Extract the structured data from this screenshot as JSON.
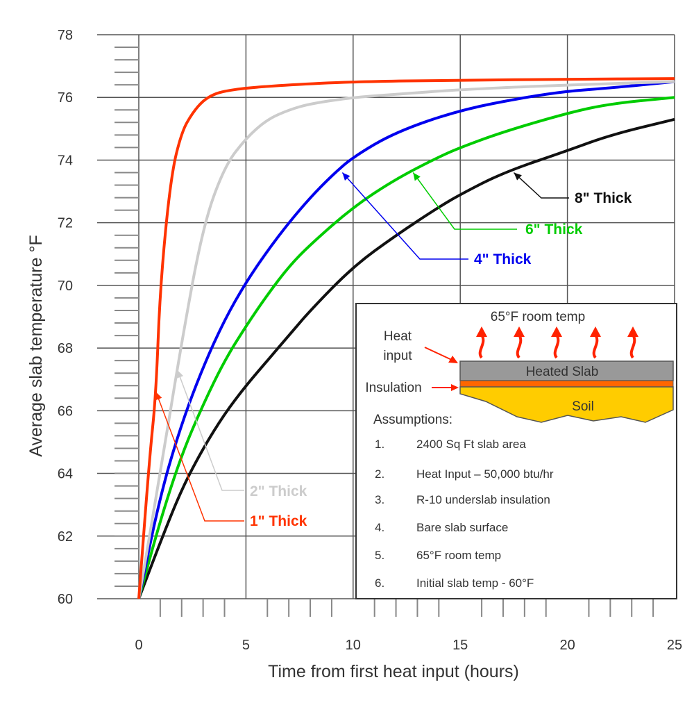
{
  "chart_data": {
    "type": "line",
    "title": "",
    "xlabel": "Time from first heat input (hours)",
    "ylabel": "Average slab temperature °F",
    "xlim": [
      0,
      25
    ],
    "ylim": [
      60,
      78
    ],
    "x_ticks": [
      "0",
      "5",
      "10",
      "15",
      "20",
      "25"
    ],
    "y_ticks": [
      "60",
      "62",
      "64",
      "66",
      "68",
      "70",
      "72",
      "74",
      "76",
      "78"
    ],
    "grid": true,
    "series": [
      {
        "name": "1\" Thick",
        "color": "#ff3300",
        "x": [
          0,
          0.5,
          0.8,
          1.0,
          1.5,
          2.0,
          2.5,
          3.0,
          3.5,
          4.0,
          5.0,
          7.0,
          10.0,
          15.0,
          20.0,
          25.0
        ],
        "y": [
          60.0,
          64.5,
          66.5,
          70.0,
          73.5,
          74.9,
          75.5,
          75.9,
          76.1,
          76.2,
          76.3,
          76.4,
          76.5,
          76.55,
          76.58,
          76.6
        ]
      },
      {
        "name": "2\" Thick",
        "color": "#cccccc",
        "x": [
          0,
          1.0,
          2.0,
          3.0,
          4.0,
          5.0,
          6.0,
          7.0,
          8.0,
          10.0,
          12.0,
          15.0,
          20.0,
          25.0
        ],
        "y": [
          60.0,
          64.0,
          68.2,
          71.9,
          73.8,
          74.7,
          75.3,
          75.6,
          75.8,
          76.0,
          76.1,
          76.25,
          76.4,
          76.5
        ]
      },
      {
        "name": "4\" Thick",
        "color": "#0000ee",
        "x": [
          0,
          1.0,
          2.0,
          3.0,
          4.0,
          5.0,
          6.0,
          7.0,
          8.0,
          9.0,
          10.0,
          12.0,
          15.0,
          18.0,
          20.0,
          22.0,
          25.0
        ],
        "y": [
          60.0,
          63.3,
          65.6,
          67.4,
          68.9,
          70.1,
          71.1,
          72.0,
          72.8,
          73.5,
          74.1,
          74.9,
          75.6,
          76.0,
          76.2,
          76.3,
          76.5
        ]
      },
      {
        "name": "6\" Thick",
        "color": "#00cc00",
        "x": [
          0,
          1.0,
          2.0,
          3.0,
          4.0,
          5.0,
          6.0,
          7.0,
          8.0,
          10.0,
          12.0,
          14.0,
          15.0,
          17.0,
          20.0,
          22.0,
          25.0
        ],
        "y": [
          60.0,
          62.5,
          64.6,
          66.2,
          67.6,
          68.7,
          69.7,
          70.6,
          71.3,
          72.5,
          73.4,
          74.1,
          74.4,
          74.9,
          75.5,
          75.8,
          76.0
        ]
      },
      {
        "name": "8\" Thick",
        "color": "#111111",
        "x": [
          0,
          1.0,
          2.0,
          3.0,
          4.0,
          5.0,
          6.0,
          7.0,
          8.0,
          10.0,
          12.0,
          14.0,
          15.0,
          17.0,
          20.0,
          22.0,
          25.0
        ],
        "y": [
          60.0,
          61.8,
          63.5,
          64.8,
          65.9,
          66.8,
          67.6,
          68.4,
          69.2,
          70.6,
          71.6,
          72.5,
          72.9,
          73.6,
          74.3,
          74.8,
          75.3
        ]
      }
    ],
    "annotations": [
      {
        "text": "1\" Thick",
        "color": "#ff3300",
        "points_to": [
          0.8,
          66.6
        ]
      },
      {
        "text": "2\" Thick",
        "color": "#cccccc",
        "points_to": [
          1.8,
          67.3
        ]
      },
      {
        "text": "4\" Thick",
        "color": "#0000ee",
        "points_to": [
          9.5,
          73.6
        ]
      },
      {
        "text": "6\" Thick",
        "color": "#00cc00",
        "points_to": [
          12.8,
          73.6
        ]
      },
      {
        "text": "8\" Thick",
        "color": "#111111",
        "points_to": [
          17.5,
          73.6
        ]
      }
    ],
    "inset": {
      "room_label": "65°F room temp",
      "heat_input_line1": "Heat",
      "heat_input_line2": "input",
      "slab_label": "Heated Slab",
      "insulation_label": "Insulation",
      "soil_label": "Soil",
      "assumptions_title": "Assumptions:",
      "assumptions": [
        {
          "num": "1.",
          "text": "2400 Sq Ft slab area"
        },
        {
          "num": "2.",
          "text": "Heat Input – 50,000 btu/hr"
        },
        {
          "num": "3.",
          "text": "R-10 underslab insulation"
        },
        {
          "num": "4.",
          "text": "Bare slab surface"
        },
        {
          "num": "5.",
          "text": "65°F room temp"
        },
        {
          "num": "6.",
          "text": "Initial slab temp - 60°F"
        }
      ],
      "colors": {
        "slab": "#999999",
        "insulation": "#ff6600",
        "soil": "#ffcc00",
        "arrow": "#ff2200"
      }
    }
  }
}
